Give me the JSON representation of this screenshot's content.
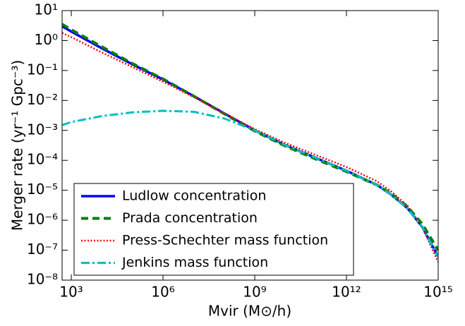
{
  "chart_data": {
    "type": "line",
    "xlabel": "Mvir (M⊙/h)",
    "ylabel": "Merger rate (yr⁻¹ Gpc⁻³)",
    "xscale": "log",
    "yscale": "log",
    "xlim": [
      500,
      1000000000000000.0
    ],
    "ylim": [
      1e-08,
      10
    ],
    "xticks": [
      {
        "value": 1000.0,
        "label": "10³"
      },
      {
        "value": 1000000.0,
        "label": "10⁶"
      },
      {
        "value": 1000000000.0,
        "label": "10⁹"
      },
      {
        "value": 1000000000000.0,
        "label": "10¹²"
      },
      {
        "value": 1000000000000000.0,
        "label": "10¹⁵"
      }
    ],
    "yticks": [
      {
        "value": 1e-08,
        "label": "10⁻⁸"
      },
      {
        "value": 1e-07,
        "label": "10⁻⁷"
      },
      {
        "value": 1e-06,
        "label": "10⁻⁶"
      },
      {
        "value": 1e-05,
        "label": "10⁻⁵"
      },
      {
        "value": 0.0001,
        "label": "10⁻⁴"
      },
      {
        "value": 0.001,
        "label": "10⁻³"
      },
      {
        "value": 0.01,
        "label": "10⁻²"
      },
      {
        "value": 0.1,
        "label": "10⁻¹"
      },
      {
        "value": 1,
        "label": "10⁰"
      },
      {
        "value": 10,
        "label": "10¹"
      }
    ],
    "legend": "lower left",
    "x": [
      500,
      1000.0,
      10000.0,
      100000.0,
      1000000.0,
      10000000.0,
      100000000.0,
      1000000000.0,
      10000000000.0,
      100000000000.0,
      1000000000000.0,
      10000000000000.0,
      30000000000000.0,
      100000000000000.0,
      300000000000000.0,
      1000000000000000.0
    ],
    "series": [
      {
        "name": "Ludlow concentration",
        "color": "#0000ff",
        "style": "solid",
        "values": [
          3,
          2,
          0.55,
          0.16,
          0.05,
          0.014,
          0.0037,
          0.001,
          0.00032,
          0.00012,
          4.5e-05,
          1.5e-05,
          7e-06,
          2.5e-06,
          6e-07,
          6e-08
        ]
      },
      {
        "name": "Prada concentration",
        "color": "#008000",
        "style": "dashed",
        "values": [
          3.5,
          2.3,
          0.62,
          0.17,
          0.052,
          0.014,
          0.0036,
          0.00095,
          0.0003,
          0.00011,
          4.2e-05,
          1.5e-05,
          7.5e-06,
          2.8e-06,
          7.5e-07,
          1e-07
        ]
      },
      {
        "name": "Press-Schechter mass function",
        "color": "#ff0000",
        "style": "dotted",
        "values": [
          1.8,
          1.3,
          0.4,
          0.13,
          0.042,
          0.013,
          0.0037,
          0.0011,
          0.00038,
          0.00015,
          6e-05,
          2e-05,
          9e-06,
          3e-06,
          6e-07,
          4e-08
        ]
      },
      {
        "name": "Jenkins mass function",
        "color": "#00bfbf",
        "style": "dashdot",
        "values": [
          0.0015,
          0.0019,
          0.003,
          0.004,
          0.0045,
          0.0042,
          0.0025,
          0.001,
          0.00032,
          0.00012,
          4.5e-05,
          1.5e-05,
          7e-06,
          2.5e-06,
          6e-07,
          6e-08
        ]
      }
    ]
  }
}
